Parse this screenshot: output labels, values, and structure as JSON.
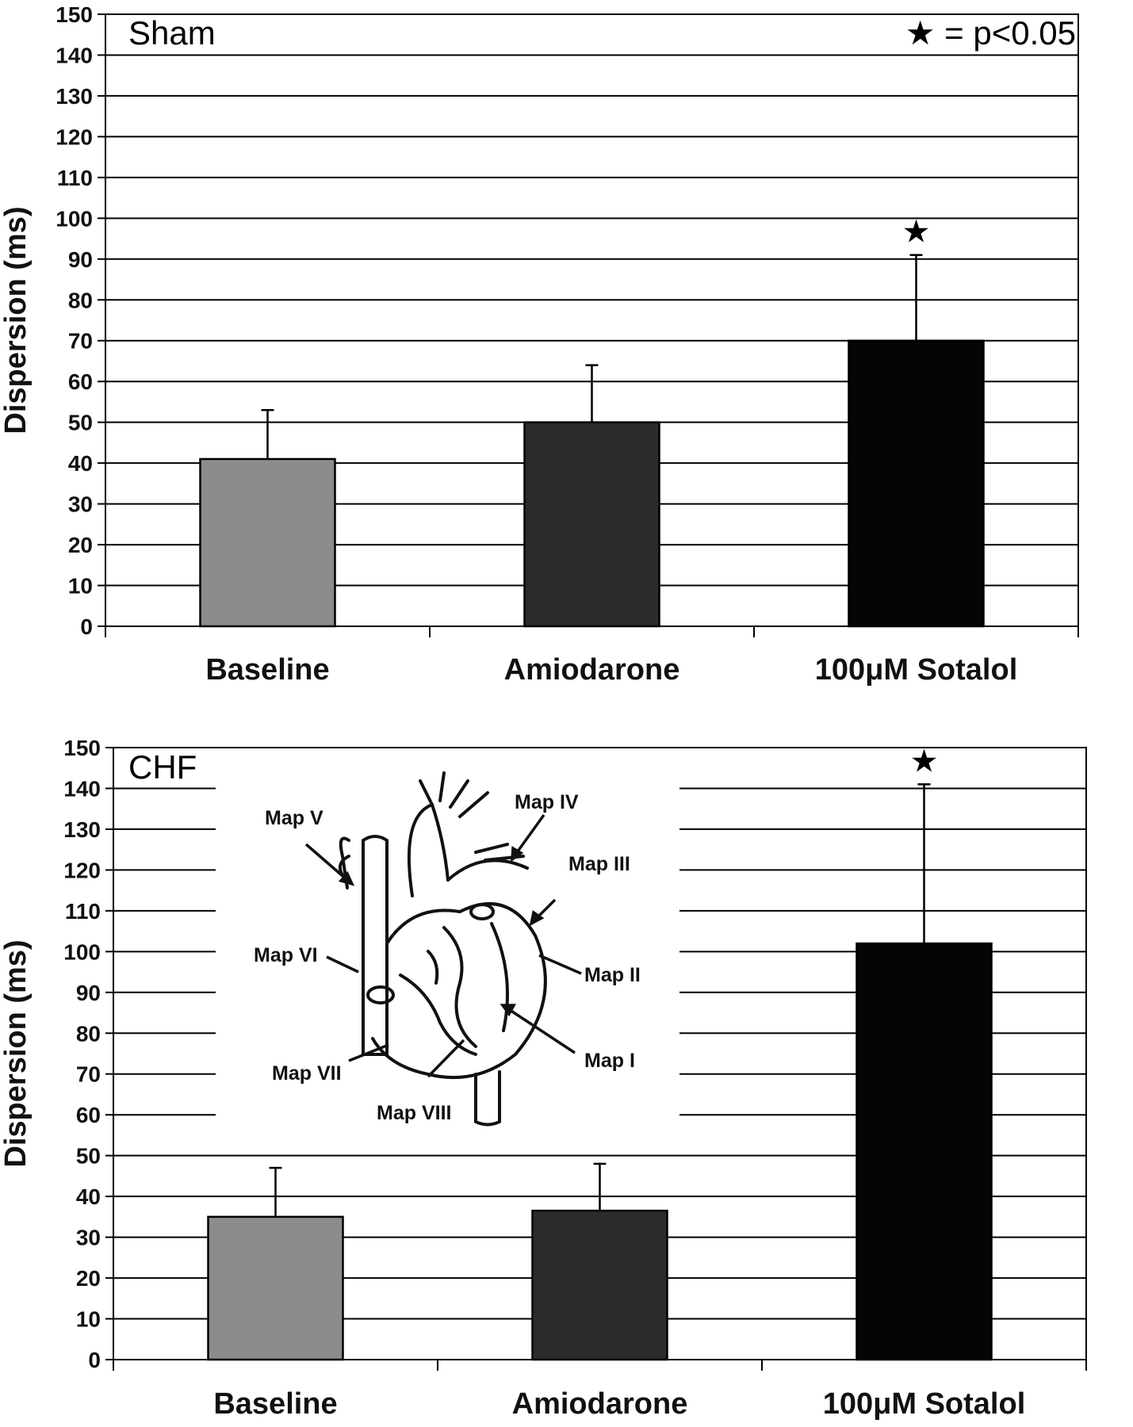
{
  "chart_data": [
    {
      "type": "bar",
      "panel_label": "Sham",
      "annotation": "★ = p<0.05",
      "ylabel": "Dispersion (ms)",
      "ylim": [
        0,
        150
      ],
      "ytick_step": 10,
      "grid": true,
      "categories": [
        "Baseline",
        "Amiodarone",
        "100μM Sotalol"
      ],
      "values": [
        41,
        50,
        70
      ],
      "error_plus": [
        12,
        14,
        21
      ],
      "significant": [
        false,
        false,
        true
      ],
      "colors": [
        "#8c8c8c",
        "#2b2b2b",
        "#050505"
      ]
    },
    {
      "type": "bar",
      "panel_label": "CHF",
      "ylabel": "Dispersion (ms)",
      "ylim": [
        0,
        150
      ],
      "ytick_step": 10,
      "grid": true,
      "categories": [
        "Baseline",
        "Amiodarone",
        "100μM Sotalol"
      ],
      "values": [
        35,
        36.5,
        102
      ],
      "error_plus": [
        12,
        11.5,
        39
      ],
      "significant": [
        false,
        false,
        true
      ],
      "colors": [
        "#8c8c8c",
        "#2b2b2b",
        "#050505"
      ],
      "inset_labels": [
        "Map I",
        "Map II",
        "Map III",
        "Map IV",
        "Map V",
        "Map VI",
        "Map VII",
        "Map VIII"
      ]
    }
  ]
}
